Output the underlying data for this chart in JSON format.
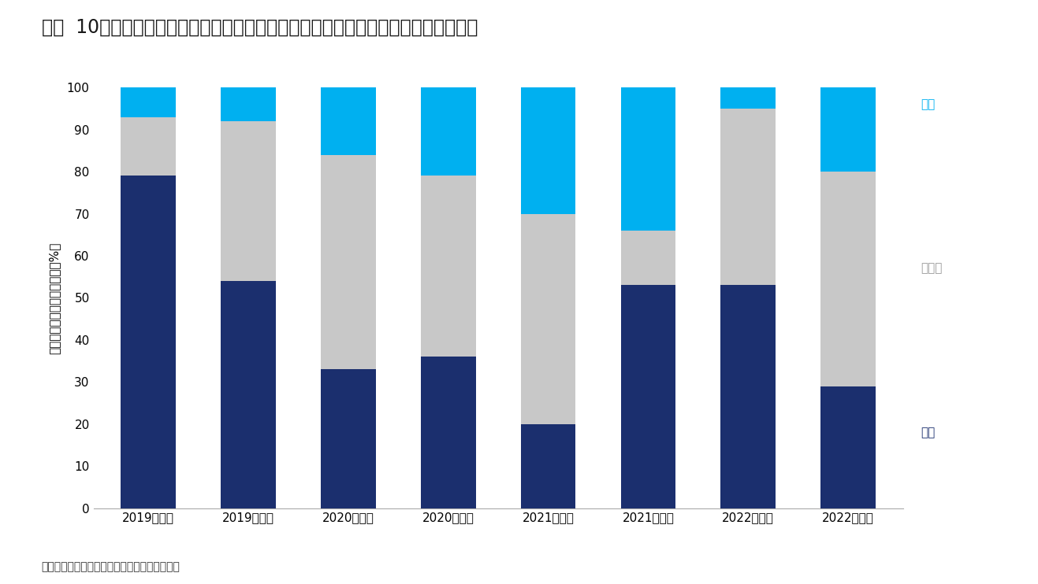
{
  "title": "図表  10：オフィス移転件数における拡張・同規模・縮小の比率（丸の内・大手町）",
  "source": "（出所）三幸エステート・ニッセイ基礎研究所",
  "ylabel": "拡張・同規模・縮小の割合（%）",
  "categories": [
    "2019年上期",
    "2019年下期",
    "2020年上期",
    "2020年下期",
    "2021年上期",
    "2021年下期",
    "2022年上期",
    "2022年下期"
  ],
  "kakucho": [
    79,
    54,
    33,
    36,
    20,
    53,
    53,
    29
  ],
  "doukibo": [
    14,
    38,
    51,
    43,
    50,
    13,
    42,
    51
  ],
  "shukusho": [
    7,
    8,
    16,
    21,
    30,
    34,
    5,
    20
  ],
  "color_kakucho": "#1b2f6e",
  "color_doukibo": "#c8c8c8",
  "color_shukusho": "#00b0f0",
  "label_kakucho": "拡張",
  "label_doukibo": "同規模",
  "label_shukusho": "縮小",
  "ylim": [
    0,
    100
  ],
  "yticks": [
    0,
    10,
    20,
    30,
    40,
    50,
    60,
    70,
    80,
    90,
    100
  ],
  "background_color": "#ffffff",
  "title_fontsize": 17,
  "axis_label_fontsize": 11,
  "tick_fontsize": 11,
  "annot_fontsize": 11,
  "source_fontsize": 10,
  "bar_width": 0.55
}
